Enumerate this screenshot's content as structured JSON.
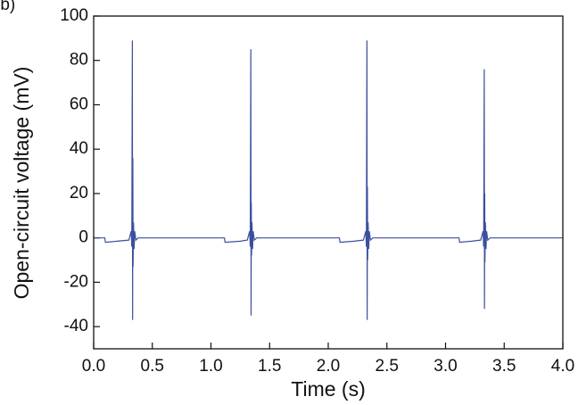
{
  "chart_data": {
    "type": "line",
    "panel_label": "(b)",
    "x_label": "Time (s)",
    "y_label": "Open-circuit voltage (mV)",
    "color": "#3b4f9e",
    "xlim": [
      0,
      4
    ],
    "ylim": [
      -50,
      100
    ],
    "xticks": [
      {
        "value": 0,
        "label": "0.0"
      },
      0.5,
      {
        "value": 1,
        "label": "1.0"
      },
      1.5,
      {
        "value": 2,
        "label": "2.0"
      },
      2.5,
      {
        "value": 3,
        "label": "3.0"
      },
      3.5,
      {
        "value": 4,
        "label": "4.0"
      }
    ],
    "yticks": [
      -40,
      -20,
      0,
      20,
      40,
      60,
      80,
      100
    ],
    "x": [
      0,
      0.095,
      0.1,
      0.2,
      0.3,
      0.32,
      0.325,
      0.33,
      0.332,
      0.334,
      0.336,
      0.34,
      0.345,
      0.35,
      0.36,
      0.38,
      1.115,
      1.12,
      1.25,
      1.31,
      1.33,
      1.335,
      1.34,
      1.342,
      1.344,
      1.346,
      1.35,
      1.355,
      1.36,
      1.37,
      1.39,
      2.095,
      2.1,
      2.22,
      2.3,
      2.32,
      2.325,
      2.33,
      2.332,
      2.334,
      2.336,
      2.34,
      2.345,
      2.35,
      2.36,
      2.38,
      3.115,
      3.12,
      3.22,
      3.3,
      3.32,
      3.325,
      3.33,
      3.332,
      3.334,
      3.336,
      3.34,
      3.345,
      3.35,
      3.36,
      3.38,
      4.0
    ],
    "values": [
      0,
      0,
      -2,
      -1.5,
      -1,
      3,
      -4,
      89,
      -37,
      36,
      -13,
      7,
      -5,
      3,
      -1,
      0,
      0,
      -2,
      -1.5,
      -1,
      3,
      -4,
      85,
      -35,
      16,
      -8,
      7,
      -5,
      3,
      -1,
      0,
      0,
      -2,
      -1.5,
      -1,
      3,
      -4,
      89,
      -37,
      23,
      -10,
      7,
      -5,
      3,
      -1,
      0,
      0,
      -2,
      -1.5,
      -1,
      3,
      -4,
      76,
      -32,
      20,
      -11,
      7,
      -5,
      3,
      -1,
      0,
      0
    ]
  }
}
